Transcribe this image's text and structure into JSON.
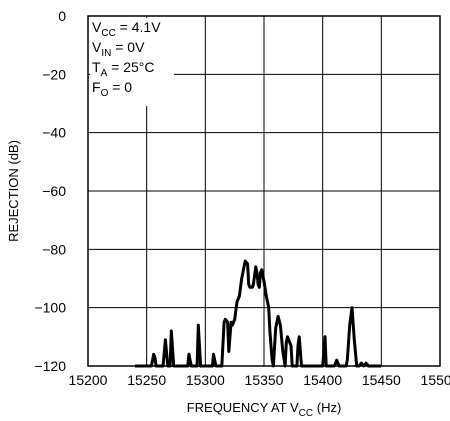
{
  "chart_data": {
    "type": "line",
    "xlabel_main": "FREQUENCY AT V",
    "xlabel_sub": "CC",
    "xlabel_tail": " (Hz)",
    "ylabel": "REJECTION (dB)",
    "xlim": [
      15200,
      15500
    ],
    "ylim": [
      -120,
      0
    ],
    "x_ticks": [
      15200,
      15250,
      15300,
      15350,
      15400,
      15450,
      15500
    ],
    "y_ticks": [
      0,
      -20,
      -40,
      -60,
      -80,
      -100,
      -120
    ],
    "x_tick_labels": [
      "15200",
      "15250",
      "15300",
      "15350",
      "15400",
      "15450",
      "15500"
    ],
    "y_tick_labels": [
      "0",
      "−20",
      "−40",
      "−60",
      "−80",
      "−100",
      "−120"
    ],
    "grid": true,
    "annotations": [
      {
        "main": "V",
        "sub": "CC",
        "tail": " = 4.1V"
      },
      {
        "main": "V",
        "sub": "IN",
        "tail": " = 0V"
      },
      {
        "main": "T",
        "sub": "A",
        "tail": " = 25°C"
      },
      {
        "main": "F",
        "sub": "O",
        "tail": " = 0"
      }
    ],
    "series": [
      {
        "color": "#000000",
        "x": [
          15240,
          15254,
          15256,
          15257,
          15258,
          15260,
          15264,
          15266,
          15268,
          15270,
          15271,
          15273,
          15283,
          15285,
          15286,
          15288,
          15291,
          15293,
          15294,
          15296,
          15304,
          15306,
          15307,
          15309,
          15314,
          15316,
          15317,
          15319,
          15320,
          15322,
          15323,
          15325,
          15327,
          15329,
          15331,
          15334,
          15336,
          15337,
          15338,
          15340,
          15341,
          15343,
          15344,
          15345,
          15346,
          15347,
          15348,
          15350,
          15352,
          15354,
          15355,
          15356,
          15357,
          15358,
          15360,
          15362,
          15364,
          15366,
          15368,
          15369,
          15370,
          15372,
          15373,
          15374,
          15378,
          15379,
          15380,
          15382,
          15386,
          15400,
          15402,
          15403,
          15405,
          15410,
          15412,
          15414,
          15418,
          15420,
          15421,
          15422,
          15423,
          15425,
          15427,
          15429,
          15431,
          15433,
          15435,
          15437,
          15439,
          15441,
          15450
        ],
        "y": [
          -120,
          -120,
          -116,
          -117,
          -120,
          -120,
          -120,
          -111,
          -120,
          -120,
          -108,
          -120,
          -120,
          -120,
          -116,
          -120,
          -120,
          -120,
          -106,
          -120,
          -120,
          -120,
          -116,
          -120,
          -120,
          -105,
          -104,
          -105,
          -115,
          -105,
          -106,
          -104,
          -98,
          -96,
          -90,
          -84,
          -85,
          -92,
          -93,
          -93,
          -92,
          -86,
          -88,
          -92,
          -93,
          -88,
          -87,
          -91,
          -96,
          -100,
          -108,
          -113,
          -118,
          -120,
          -107,
          -103,
          -106,
          -115,
          -120,
          -112,
          -110,
          -112,
          -113,
          -120,
          -120,
          -113,
          -110,
          -120,
          -120,
          -120,
          -110,
          -120,
          -120,
          -120,
          -118,
          -120,
          -120,
          -120,
          -118,
          -112,
          -106,
          -100,
          -111,
          -120,
          -120,
          -119,
          -120,
          -119,
          -120,
          -120,
          -120
        ]
      }
    ]
  }
}
